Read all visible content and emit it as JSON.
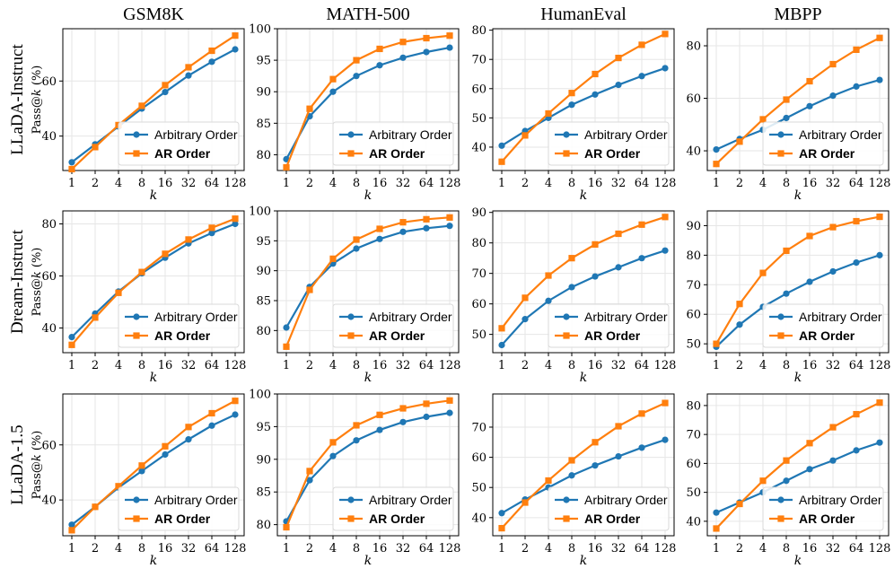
{
  "colors": {
    "arbitrary": "#1f77b4",
    "ar": "#ff7f0e"
  },
  "legend": [
    {
      "label": "Arbitrary Order",
      "bold": false,
      "marker": "circle"
    },
    {
      "label": "AR Order",
      "bold": true,
      "marker": "square"
    }
  ],
  "column_titles": [
    "GSM8K",
    "MATH-500",
    "HumanEval",
    "MBPP"
  ],
  "row_labels": [
    "LLaDA-Instruct",
    "Dream-Instruct",
    "LLaDA-1.5"
  ],
  "y_axis_label_parts": [
    "Pass@",
    "k",
    " (%)"
  ],
  "x_axis_label": "k",
  "chart_data": [
    {
      "type": "line",
      "row": 0,
      "col": 0,
      "title": "GSM8K",
      "x": [
        "1",
        "2",
        "4",
        "8",
        "16",
        "32",
        "64",
        "128"
      ],
      "ylim": [
        27.5,
        79
      ],
      "yticks": [
        40,
        60
      ],
      "grid": true,
      "legend": "lower-right",
      "series": [
        {
          "name": "Arbitrary Order",
          "values": [
            30.5,
            37.0,
            43.5,
            50.0,
            56.0,
            62.0,
            67.0,
            71.5
          ]
        },
        {
          "name": "AR Order",
          "values": [
            28.0,
            36.0,
            44.0,
            51.0,
            58.5,
            65.0,
            71.0,
            76.5
          ]
        }
      ]
    },
    {
      "type": "line",
      "row": 0,
      "col": 1,
      "title": "MATH-500",
      "x": [
        "1",
        "2",
        "4",
        "8",
        "16",
        "32",
        "64",
        "128"
      ],
      "ylim": [
        77.5,
        100
      ],
      "yticks": [
        80,
        85,
        90,
        95,
        100
      ],
      "grid": true,
      "legend": "lower-right",
      "series": [
        {
          "name": "Arbitrary Order",
          "values": [
            79.3,
            86.1,
            90.0,
            92.5,
            94.2,
            95.4,
            96.3,
            97.0
          ]
        },
        {
          "name": "AR Order",
          "values": [
            78.0,
            87.3,
            92.0,
            95.0,
            96.8,
            97.9,
            98.5,
            98.9
          ]
        }
      ]
    },
    {
      "type": "line",
      "row": 0,
      "col": 2,
      "title": "HumanEval",
      "x": [
        "1",
        "2",
        "4",
        "8",
        "16",
        "32",
        "64",
        "128"
      ],
      "ylim": [
        32,
        80.5
      ],
      "yticks": [
        40,
        50,
        60,
        70,
        80
      ],
      "grid": true,
      "legend": "lower-right",
      "series": [
        {
          "name": "Arbitrary Order",
          "values": [
            40.5,
            45.5,
            50.0,
            54.5,
            58.0,
            61.3,
            64.3,
            67.0
          ]
        },
        {
          "name": "AR Order",
          "values": [
            35.0,
            44.0,
            51.5,
            58.5,
            65.0,
            70.5,
            75.0,
            78.7
          ]
        }
      ]
    },
    {
      "type": "line",
      "row": 0,
      "col": 3,
      "title": "MBPP",
      "x": [
        "1",
        "2",
        "4",
        "8",
        "16",
        "32",
        "64",
        "128"
      ],
      "ylim": [
        32.5,
        86.5
      ],
      "yticks": [
        40,
        60,
        80
      ],
      "grid": true,
      "legend": "lower-right",
      "series": [
        {
          "name": "Arbitrary Order",
          "values": [
            40.5,
            44.5,
            48.0,
            52.5,
            57.0,
            61.0,
            64.5,
            67.0
          ]
        },
        {
          "name": "AR Order",
          "values": [
            35.0,
            43.5,
            52.0,
            59.5,
            66.5,
            73.0,
            78.5,
            83.0
          ]
        }
      ]
    },
    {
      "type": "line",
      "row": 1,
      "col": 0,
      "title": "GSM8K",
      "x": [
        "1",
        "2",
        "4",
        "8",
        "16",
        "32",
        "64",
        "128"
      ],
      "ylim": [
        30.5,
        85
      ],
      "yticks": [
        40,
        60,
        80
      ],
      "grid": true,
      "legend": "lower-right",
      "series": [
        {
          "name": "Arbitrary Order",
          "values": [
            36.5,
            45.5,
            54.0,
            61.0,
            67.0,
            72.5,
            76.5,
            80.0
          ]
        },
        {
          "name": "AR Order",
          "values": [
            33.5,
            44.0,
            53.5,
            61.5,
            68.5,
            74.0,
            78.5,
            82.0
          ]
        }
      ]
    },
    {
      "type": "line",
      "row": 1,
      "col": 1,
      "title": "MATH-500",
      "x": [
        "1",
        "2",
        "4",
        "8",
        "16",
        "32",
        "64",
        "128"
      ],
      "ylim": [
        76.3,
        100
      ],
      "yticks": [
        80,
        85,
        90,
        95,
        100
      ],
      "grid": true,
      "legend": "lower-right",
      "series": [
        {
          "name": "Arbitrary Order",
          "values": [
            80.5,
            87.3,
            91.2,
            93.7,
            95.3,
            96.5,
            97.1,
            97.5
          ]
        },
        {
          "name": "AR Order",
          "values": [
            77.3,
            86.8,
            92.0,
            95.2,
            97.0,
            98.1,
            98.6,
            98.9
          ]
        }
      ]
    },
    {
      "type": "line",
      "row": 1,
      "col": 2,
      "title": "HumanEval",
      "x": [
        "1",
        "2",
        "4",
        "8",
        "16",
        "32",
        "64",
        "128"
      ],
      "ylim": [
        44,
        90.5
      ],
      "yticks": [
        50,
        60,
        70,
        80,
        90
      ],
      "grid": true,
      "legend": "lower-right",
      "series": [
        {
          "name": "Arbitrary Order",
          "values": [
            46.5,
            55.0,
            61.0,
            65.5,
            69.0,
            72.0,
            75.0,
            77.5
          ]
        },
        {
          "name": "AR Order",
          "values": [
            52.0,
            62.0,
            69.3,
            75.0,
            79.5,
            83.0,
            86.0,
            88.5
          ]
        }
      ]
    },
    {
      "type": "line",
      "row": 1,
      "col": 3,
      "title": "MBPP",
      "x": [
        "1",
        "2",
        "4",
        "8",
        "16",
        "32",
        "64",
        "128"
      ],
      "ylim": [
        47,
        95
      ],
      "yticks": [
        50,
        60,
        70,
        80,
        90
      ],
      "grid": true,
      "legend": "lower-right",
      "series": [
        {
          "name": "Arbitrary Order",
          "values": [
            49.0,
            56.5,
            62.5,
            67.0,
            71.0,
            74.5,
            77.5,
            80.0
          ]
        },
        {
          "name": "AR Order",
          "values": [
            50.0,
            63.5,
            74.0,
            81.5,
            86.5,
            89.5,
            91.5,
            93.0
          ]
        }
      ]
    },
    {
      "type": "line",
      "row": 2,
      "col": 0,
      "title": "GSM8K",
      "x": [
        "1",
        "2",
        "4",
        "8",
        "16",
        "32",
        "64",
        "128"
      ],
      "ylim": [
        27,
        78.5
      ],
      "yticks": [
        40,
        60
      ],
      "grid": true,
      "legend": "lower-right",
      "series": [
        {
          "name": "Arbitrary Order",
          "values": [
            31.0,
            37.5,
            44.5,
            50.5,
            56.5,
            62.0,
            67.0,
            71.0
          ]
        },
        {
          "name": "AR Order",
          "values": [
            29.0,
            37.5,
            45.0,
            52.5,
            59.5,
            66.5,
            71.5,
            76.0
          ]
        }
      ]
    },
    {
      "type": "line",
      "row": 2,
      "col": 1,
      "title": "MATH-500",
      "x": [
        "1",
        "2",
        "4",
        "8",
        "16",
        "32",
        "64",
        "128"
      ],
      "ylim": [
        78.3,
        100
      ],
      "yticks": [
        80,
        85,
        90,
        95,
        100
      ],
      "grid": true,
      "legend": "lower-right",
      "series": [
        {
          "name": "Arbitrary Order",
          "values": [
            80.5,
            86.8,
            90.5,
            92.9,
            94.5,
            95.7,
            96.5,
            97.1
          ]
        },
        {
          "name": "AR Order",
          "values": [
            79.6,
            88.2,
            92.6,
            95.2,
            96.8,
            97.8,
            98.5,
            99.0
          ]
        }
      ]
    },
    {
      "type": "line",
      "row": 2,
      "col": 2,
      "title": "HumanEval",
      "x": [
        "1",
        "2",
        "4",
        "8",
        "16",
        "32",
        "64",
        "128"
      ],
      "ylim": [
        34,
        81
      ],
      "yticks": [
        40,
        50,
        60,
        70
      ],
      "grid": true,
      "legend": "lower-right",
      "series": [
        {
          "name": "Arbitrary Order",
          "values": [
            41.5,
            46.0,
            50.0,
            54.0,
            57.3,
            60.3,
            63.2,
            65.8
          ]
        },
        {
          "name": "AR Order",
          "values": [
            36.5,
            45.0,
            52.3,
            59.0,
            65.0,
            70.3,
            74.5,
            78.0
          ]
        }
      ]
    },
    {
      "type": "line",
      "row": 2,
      "col": 3,
      "title": "MBPP",
      "x": [
        "1",
        "2",
        "4",
        "8",
        "16",
        "32",
        "64",
        "128"
      ],
      "ylim": [
        35,
        84
      ],
      "yticks": [
        40,
        50,
        60,
        70,
        80
      ],
      "grid": true,
      "legend": "lower-right",
      "series": [
        {
          "name": "Arbitrary Order",
          "values": [
            43.0,
            46.5,
            50.0,
            54.0,
            58.0,
            61.0,
            64.5,
            67.2
          ]
        },
        {
          "name": "AR Order",
          "values": [
            37.5,
            46.0,
            54.0,
            61.0,
            67.0,
            72.5,
            77.0,
            81.0
          ]
        }
      ]
    }
  ]
}
